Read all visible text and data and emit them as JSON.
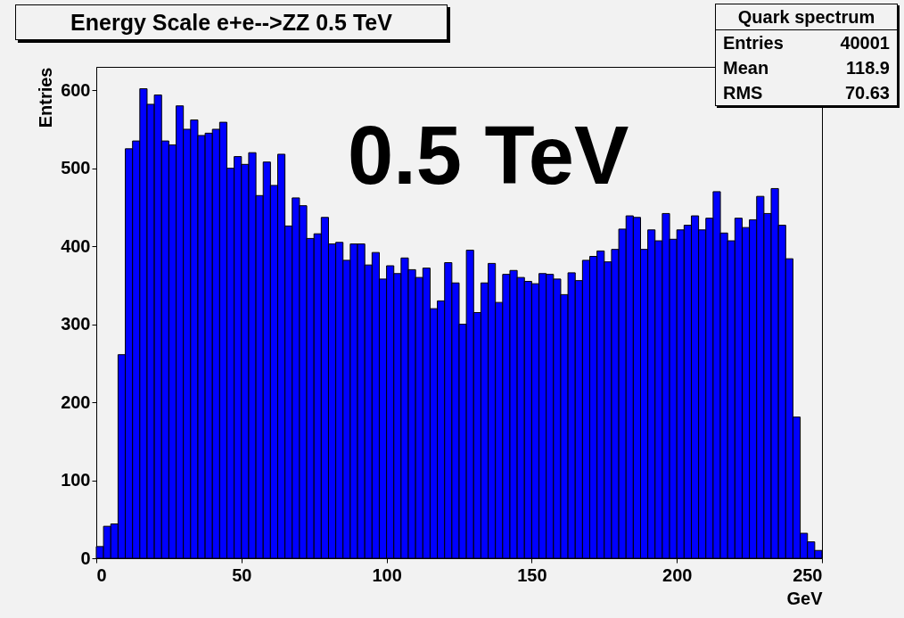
{
  "chart_data": {
    "type": "histogram",
    "title": "Energy Scale e+e-->ZZ 0.5 TeV",
    "xlabel": "GeV",
    "ylabel": "Entries",
    "color": "#0000ff",
    "bins": [
      0,
      2.5,
      5,
      7.5,
      10,
      12.5,
      15,
      17.5,
      20,
      22.5,
      25,
      27.5,
      30,
      32.5,
      35,
      37.5,
      40,
      42.5,
      45,
      47.5,
      50,
      52.5,
      55,
      57.5,
      60,
      62.5,
      65,
      67.5,
      70,
      72.5,
      75,
      77.5,
      80,
      82.5,
      85,
      87.5,
      90,
      92.5,
      95,
      97.5,
      100,
      102.5,
      105,
      107.5,
      110,
      112.5,
      115,
      117.5,
      120,
      122.5,
      125,
      127.5,
      130,
      132.5,
      135,
      137.5,
      140,
      142.5,
      145,
      147.5,
      150,
      152.5,
      155,
      157.5,
      160,
      162.5,
      165,
      167.5,
      170,
      172.5,
      175,
      177.5,
      180,
      182.5,
      185,
      187.5,
      190,
      192.5,
      195,
      197.5,
      200,
      202.5,
      205,
      207.5,
      210,
      212.5,
      215,
      217.5,
      220,
      222.5,
      225,
      227.5,
      230,
      232.5,
      235,
      237.5,
      240,
      242.5,
      245,
      247.5,
      250
    ],
    "values": [
      15,
      41,
      44,
      261,
      525,
      535,
      602,
      582,
      594,
      535,
      530,
      580,
      550,
      562,
      542,
      545,
      550,
      559,
      500,
      515,
      505,
      520,
      465,
      508,
      478,
      518,
      426,
      462,
      452,
      410,
      416,
      437,
      403,
      405,
      382,
      403,
      403,
      376,
      392,
      358,
      375,
      365,
      385,
      370,
      360,
      372,
      320,
      330,
      379,
      353,
      300,
      395,
      315,
      353,
      378,
      328,
      364,
      369,
      360,
      355,
      352,
      365,
      364,
      358,
      338,
      366,
      356,
      382,
      387,
      394,
      380,
      396,
      422,
      439,
      437,
      396,
      421,
      407,
      442,
      409,
      421,
      427,
      439,
      421,
      436,
      470,
      417,
      407,
      436,
      424,
      434,
      464,
      442,
      474,
      427,
      384,
      181,
      32,
      21,
      10
    ],
    "xlim": [
      0,
      250
    ],
    "ylim": [
      0,
      630
    ],
    "xticks": [
      0,
      50,
      100,
      150,
      200,
      250
    ],
    "yticks": [
      0,
      100,
      200,
      300,
      400,
      500,
      600
    ],
    "annotations": [
      "0.5 TeV",
      "Quark spectrum",
      "Entries 40001",
      "Mean 118.9",
      "RMS 70.63"
    ]
  }
}
